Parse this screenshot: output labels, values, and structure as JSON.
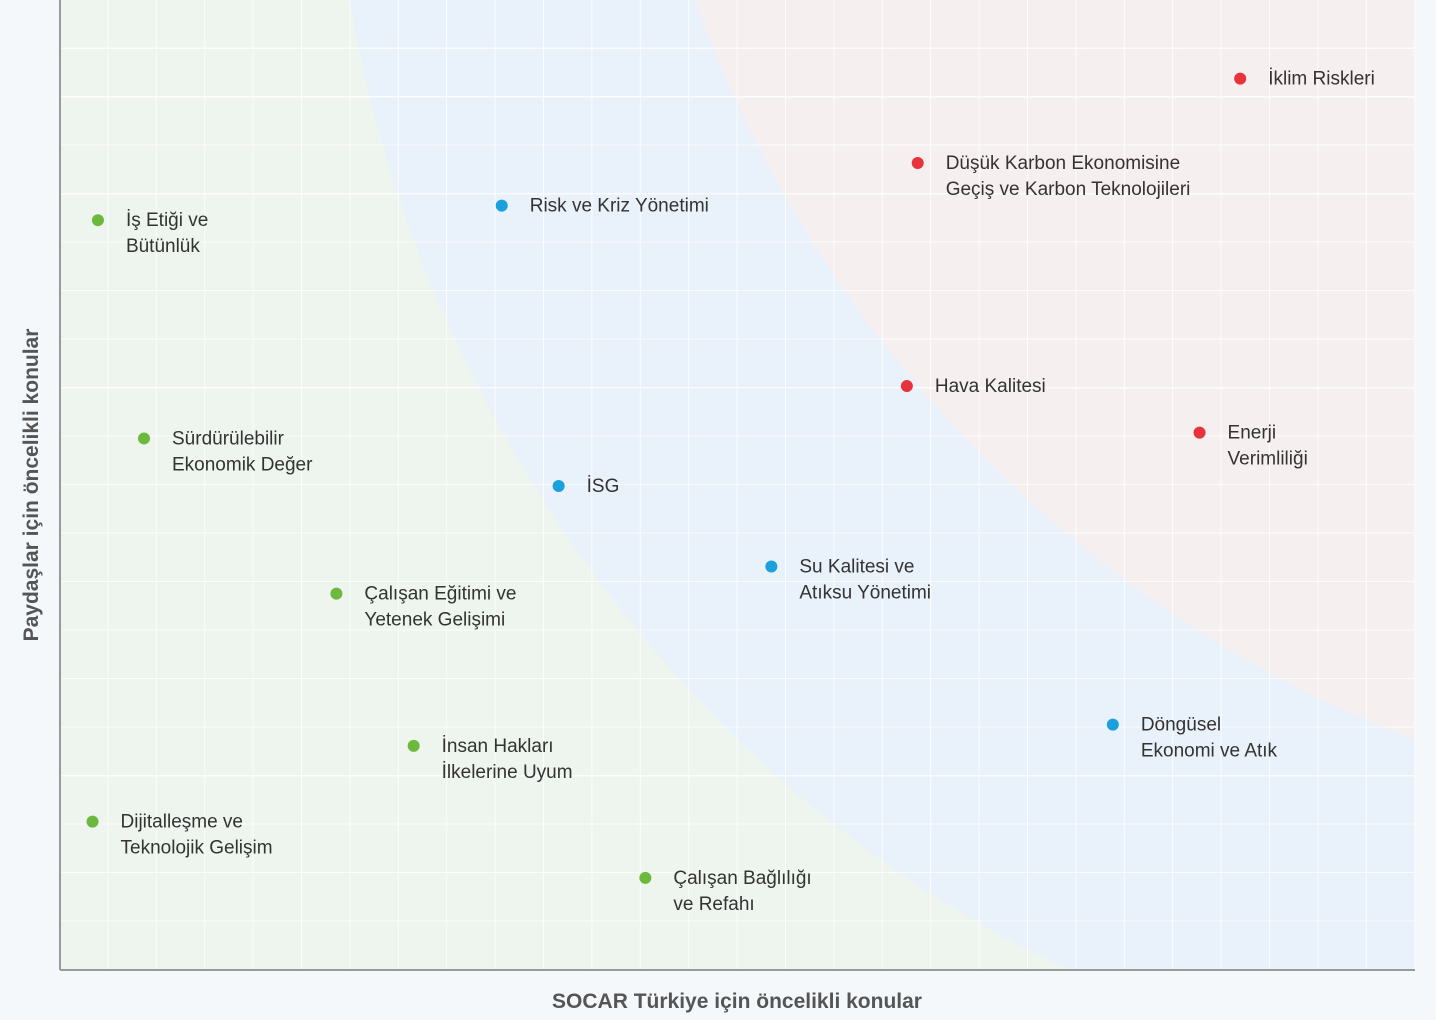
{
  "chart_data": {
    "type": "scatter",
    "xlabel": "SOCAR Türkiye için öncelikli konular",
    "ylabel": "Paydaşlar için öncelikli konular",
    "xlim": [
      0,
      100
    ],
    "ylim": [
      0,
      100
    ],
    "grid": true,
    "series": [
      {
        "color": "#e8323c",
        "x": [
          87.1,
          63.3,
          62.5,
          84.1
        ],
        "values": [
          91.9,
          83.2,
          60.2,
          55.4
        ],
        "labels": [
          [
            "İklim Riskleri"
          ],
          [
            "Düşük Karbon Ekonomisine",
            "Geçiş ve Karbon Teknolojileri"
          ],
          [
            "Hava Kalitesi"
          ],
          [
            "Enerji",
            "Verimliliği"
          ]
        ]
      },
      {
        "color": "#1aa0dc",
        "x": [
          32.6,
          36.8,
          52.5,
          77.7
        ],
        "values": [
          78.8,
          49.9,
          41.6,
          25.3
        ],
        "labels": [
          [
            "Risk ve Kriz Yönetimi"
          ],
          [
            "İSG"
          ],
          [
            "Su Kalitesi ve",
            "Atıksu Yönetimi"
          ],
          [
            "Döngüsel",
            "Ekonomi ve Atık"
          ]
        ]
      },
      {
        "color": "#6cb93e",
        "x": [
          2.8,
          6.2,
          20.4,
          26.1,
          2.4,
          43.2
        ],
        "values": [
          77.3,
          54.8,
          38.8,
          23.1,
          15.3,
          9.5
        ],
        "labels": [
          [
            "İş Etiği ve",
            "Bütünlük"
          ],
          [
            "Sürdürülebilir",
            "Ekonomik Değer"
          ],
          [
            "Çalışan Eğitimi ve",
            "Yetenek Gelişimi"
          ],
          [
            "İnsan Hakları",
            "İlkelerine Uyum"
          ],
          [
            "Dijitalleşme ve",
            "Teknolojik Gelişim"
          ],
          [
            "Çalışan Bağlılığı",
            "ve Refahı"
          ]
        ]
      }
    ]
  }
}
